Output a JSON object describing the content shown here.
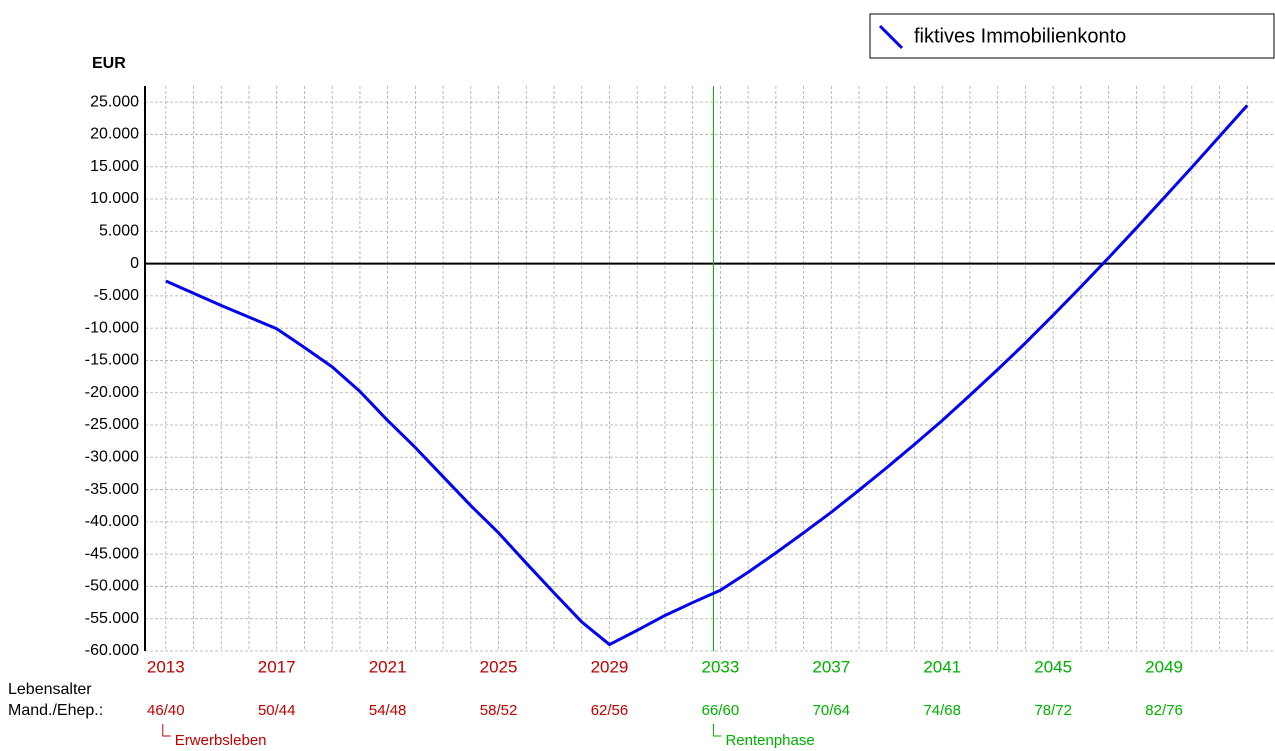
{
  "chart_data": {
    "type": "line",
    "y_label": "EUR",
    "x": [
      2013,
      2014,
      2015,
      2016,
      2017,
      2018,
      2019,
      2020,
      2021,
      2022,
      2023,
      2024,
      2025,
      2026,
      2027,
      2028,
      2029,
      2030,
      2031,
      2032,
      2033,
      2034,
      2035,
      2036,
      2037,
      2038,
      2039,
      2040,
      2041,
      2042,
      2043,
      2044,
      2045,
      2046,
      2047,
      2048,
      2049,
      2050,
      2051,
      2052
    ],
    "series": [
      {
        "name": "fiktives Immobilienkonto",
        "color": "#0000ee",
        "values": [
          -2700,
          -4600,
          -6500,
          -8300,
          -10100,
          -13000,
          -16000,
          -19800,
          -24300,
          -28500,
          -33000,
          -37500,
          -41700,
          -46400,
          -51000,
          -55500,
          -59000,
          -56800,
          -54500,
          -52500,
          -50600,
          -47800,
          -44800,
          -41700,
          -38500,
          -35100,
          -31600,
          -28000,
          -24300,
          -20400,
          -16400,
          -12300,
          -8000,
          -3600,
          900,
          5500,
          10200,
          14900,
          19700,
          24500
        ]
      }
    ],
    "xlim": [
      2012.25,
      2053
    ],
    "xticks": [
      2013,
      2017,
      2021,
      2025,
      2029,
      2033,
      2037,
      2041,
      2045,
      2049
    ],
    "ylim": [
      -60000,
      27500
    ],
    "yticks": [
      {
        "value": 25000,
        "label": "25.000"
      },
      {
        "value": 20000,
        "label": "20.000"
      },
      {
        "value": 15000,
        "label": "15.000"
      },
      {
        "value": 10000,
        "label": "10.000"
      },
      {
        "value": 5000,
        "label": "5.000"
      },
      0,
      {
        "value": -5000,
        "label": "-5.000"
      },
      {
        "value": -10000,
        "label": "-10.000"
      },
      {
        "value": -15000,
        "label": "-15.000"
      },
      {
        "value": -20000,
        "label": "-20.000"
      },
      {
        "value": -25000,
        "label": "-25.000"
      },
      {
        "value": -30000,
        "label": "-30.000"
      },
      {
        "value": -35000,
        "label": "-35.000"
      },
      {
        "value": -40000,
        "label": "-40.000"
      },
      {
        "value": -45000,
        "label": "-45.000"
      },
      {
        "value": -50000,
        "label": "-50.000"
      },
      {
        "value": -55000,
        "label": "-55.000"
      },
      {
        "value": -60000,
        "label": "-60.000"
      }
    ],
    "grid": true,
    "age_row_label_1": "Lebensalter",
    "age_row_label_2": "Mand./Ehep.:",
    "age_labels": [
      "46/40",
      "50/44",
      "54/48",
      "58/52",
      "62/56",
      "66/60",
      "70/64",
      "74/68",
      "78/72",
      "82/76"
    ],
    "retirement_x": 2032.75,
    "phases": [
      {
        "label": "Erwerbsleben",
        "color": "#c00000"
      },
      {
        "label": "Rentenphase",
        "color": "#00b000"
      }
    ],
    "legend": "top-right"
  }
}
